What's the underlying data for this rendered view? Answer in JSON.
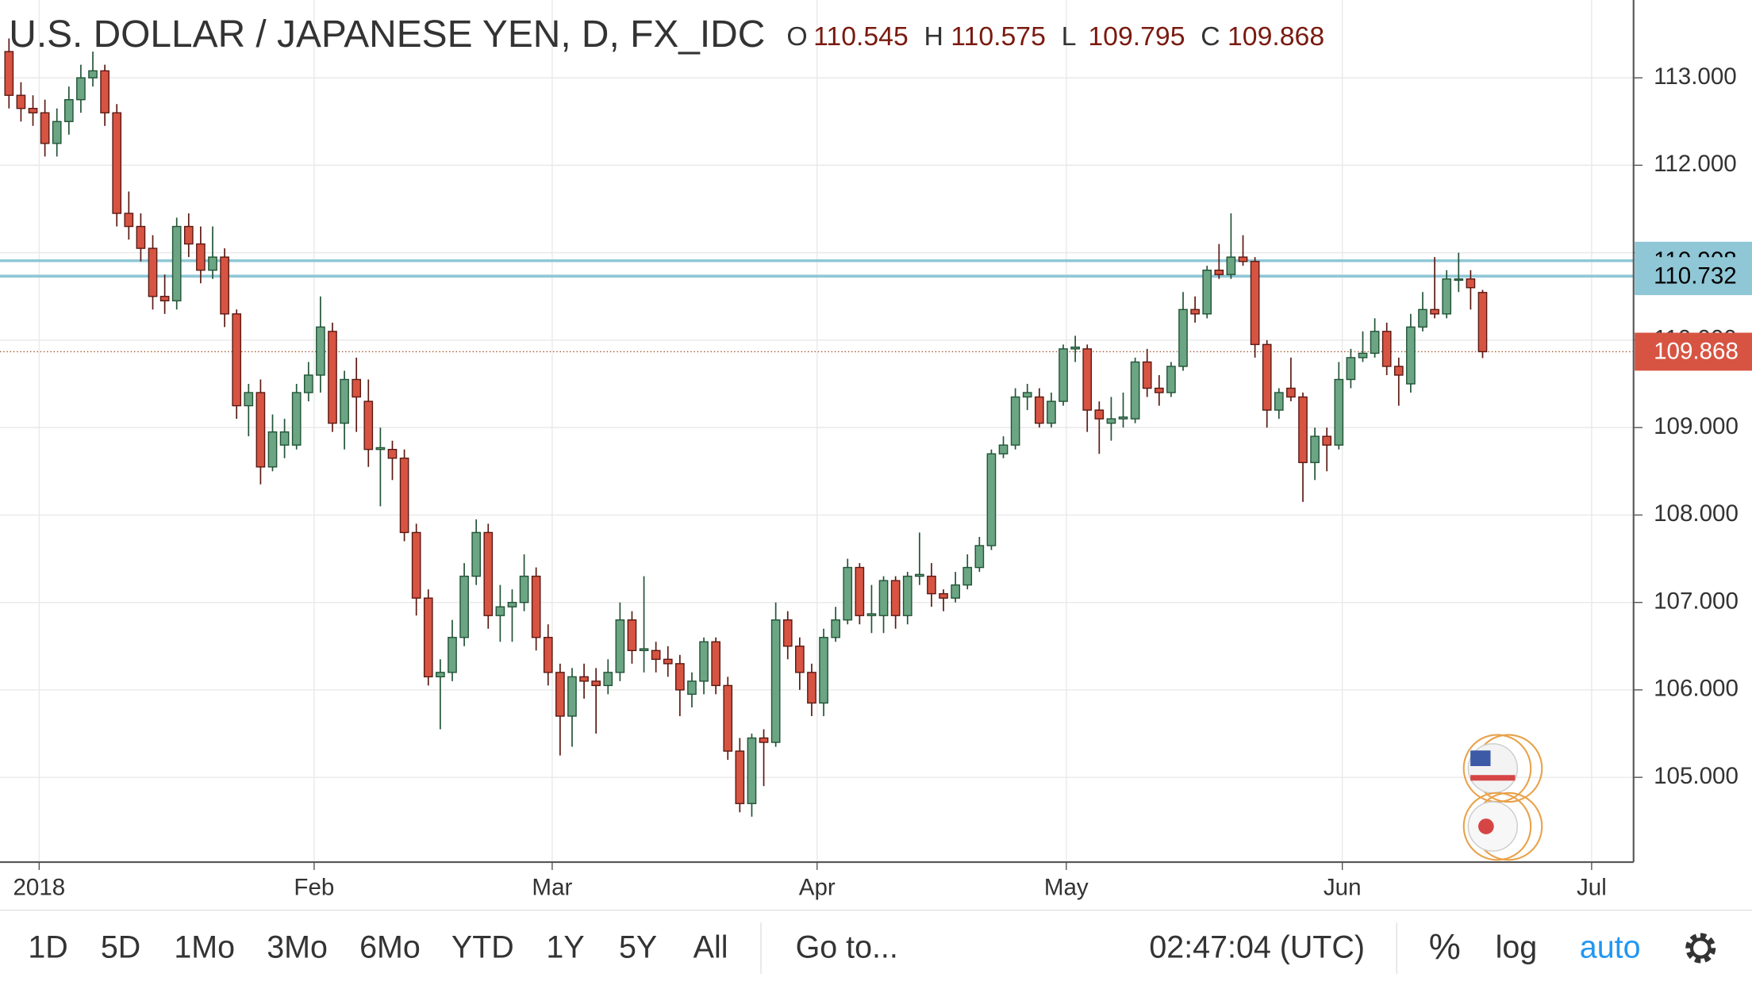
{
  "chart_data": {
    "type": "candlestick",
    "title": "U.S. DOLLAR / JAPANESE YEN, D, FX_IDC",
    "ohlc_labels": [
      "O",
      "H",
      "L",
      "C"
    ],
    "open": [
      113.3,
      112.8,
      112.65,
      112.6,
      112.25,
      112.5,
      112.75,
      113.0,
      113.08,
      112.6,
      111.45,
      111.3,
      111.05,
      110.5,
      110.45,
      111.3,
      111.1,
      110.8,
      110.95,
      110.3,
      109.25,
      109.4,
      108.55,
      108.8,
      108.8,
      109.4,
      109.6,
      110.1,
      109.05,
      109.55,
      109.3,
      108.75,
      108.75,
      108.65,
      107.8,
      107.05,
      106.15,
      106.2,
      106.6,
      107.3,
      107.8,
      106.85,
      106.95,
      107.0,
      107.3,
      106.6,
      106.2,
      105.7,
      106.15,
      106.1,
      106.05,
      106.2,
      106.8,
      106.45,
      106.45,
      106.35,
      106.3,
      105.95,
      106.1,
      106.55,
      106.05,
      105.3,
      104.7,
      105.45,
      105.4,
      106.8,
      106.5,
      106.2,
      105.85,
      106.6,
      106.8,
      107.4,
      106.85,
      106.85,
      107.25,
      106.85,
      107.3,
      107.3,
      107.1,
      107.05,
      107.2,
      107.4,
      107.65,
      108.7,
      108.8,
      109.35,
      109.35,
      109.05,
      109.3,
      109.9,
      109.9,
      109.2,
      109.05,
      109.1,
      109.1,
      109.75,
      109.45,
      109.4,
      109.7,
      110.35,
      110.3,
      110.8,
      110.75,
      110.95,
      110.9,
      109.95,
      109.2,
      109.45,
      109.35,
      108.6,
      108.9,
      108.8,
      109.55,
      109.8,
      109.85,
      110.1,
      109.7,
      109.5,
      110.15,
      110.35,
      110.3,
      110.7,
      110.7,
      110.545
    ],
    "high": [
      113.45,
      112.95,
      112.8,
      112.75,
      112.65,
      112.9,
      113.15,
      113.3,
      113.15,
      112.7,
      111.7,
      111.45,
      111.2,
      110.75,
      111.4,
      111.45,
      111.3,
      111.3,
      111.05,
      110.35,
      109.5,
      109.55,
      109.15,
      109.1,
      109.5,
      109.75,
      110.5,
      110.2,
      109.65,
      109.8,
      109.55,
      109.0,
      108.85,
      108.75,
      107.9,
      107.15,
      106.35,
      106.8,
      107.45,
      107.95,
      107.9,
      107.2,
      107.15,
      107.55,
      107.4,
      106.75,
      106.3,
      106.25,
      106.3,
      106.25,
      106.35,
      107.0,
      106.9,
      107.3,
      106.55,
      106.5,
      106.4,
      106.2,
      106.6,
      106.6,
      106.15,
      105.45,
      105.5,
      105.55,
      107.0,
      106.9,
      106.6,
      106.3,
      106.7,
      106.95,
      107.5,
      107.45,
      107.2,
      107.3,
      107.3,
      107.35,
      107.8,
      107.45,
      107.15,
      107.35,
      107.55,
      107.75,
      108.75,
      108.9,
      109.45,
      109.5,
      109.45,
      109.4,
      109.95,
      110.05,
      109.95,
      109.3,
      109.35,
      109.4,
      109.8,
      109.9,
      109.6,
      109.75,
      110.55,
      110.5,
      110.85,
      111.1,
      111.45,
      111.2,
      110.95,
      110.0,
      109.45,
      109.8,
      109.4,
      109.0,
      109.0,
      109.75,
      109.9,
      110.1,
      110.25,
      110.2,
      109.8,
      110.3,
      110.55,
      110.95,
      110.8,
      111.0,
      110.8,
      110.575
    ],
    "low": [
      112.65,
      112.5,
      112.45,
      112.1,
      112.1,
      112.35,
      112.6,
      112.9,
      112.45,
      111.3,
      111.15,
      110.9,
      110.35,
      110.3,
      110.35,
      110.95,
      110.65,
      110.7,
      110.15,
      109.1,
      108.9,
      108.35,
      108.5,
      108.65,
      108.75,
      109.3,
      109.4,
      108.95,
      108.75,
      108.95,
      108.55,
      108.1,
      108.4,
      107.7,
      106.85,
      106.05,
      105.55,
      106.1,
      106.5,
      107.2,
      106.7,
      106.55,
      106.55,
      106.9,
      106.45,
      106.05,
      105.25,
      105.35,
      105.9,
      105.5,
      105.95,
      106.1,
      106.3,
      106.2,
      106.2,
      106.15,
      105.7,
      105.8,
      105.95,
      105.95,
      105.2,
      104.6,
      104.55,
      104.9,
      105.35,
      106.35,
      106.0,
      105.7,
      105.7,
      106.55,
      106.75,
      106.75,
      106.65,
      106.65,
      106.7,
      106.75,
      107.2,
      106.95,
      106.9,
      107.0,
      107.15,
      107.35,
      107.6,
      108.65,
      108.75,
      109.2,
      109.0,
      109.0,
      109.25,
      109.75,
      108.95,
      108.7,
      108.85,
      109.0,
      109.05,
      109.35,
      109.25,
      109.35,
      109.65,
      110.2,
      110.25,
      110.7,
      110.7,
      110.85,
      109.8,
      109.0,
      109.1,
      109.3,
      108.15,
      108.4,
      108.5,
      108.75,
      109.45,
      109.75,
      109.8,
      109.6,
      109.25,
      109.4,
      110.1,
      110.25,
      110.25,
      110.55,
      110.35,
      109.795
    ],
    "close": [
      112.8,
      112.65,
      112.6,
      112.25,
      112.5,
      112.75,
      113.0,
      113.08,
      112.6,
      111.45,
      111.3,
      111.05,
      110.5,
      110.45,
      111.3,
      111.1,
      110.8,
      110.95,
      110.3,
      109.25,
      109.4,
      108.55,
      108.95,
      108.95,
      109.4,
      109.6,
      110.15,
      109.05,
      109.55,
      109.35,
      108.75,
      108.77,
      108.65,
      107.8,
      107.05,
      106.15,
      106.2,
      106.6,
      107.3,
      107.8,
      106.85,
      106.95,
      107.0,
      107.3,
      106.6,
      106.2,
      105.7,
      106.15,
      106.1,
      106.05,
      106.2,
      106.8,
      106.45,
      106.47,
      106.35,
      106.3,
      106.0,
      106.1,
      106.55,
      106.05,
      105.3,
      104.7,
      105.45,
      105.4,
      106.8,
      106.5,
      106.2,
      105.85,
      106.6,
      106.8,
      107.4,
      106.85,
      106.87,
      107.25,
      106.85,
      107.3,
      107.32,
      107.1,
      107.05,
      107.2,
      107.4,
      107.65,
      108.7,
      108.8,
      109.35,
      109.4,
      109.05,
      109.3,
      109.9,
      109.92,
      109.2,
      109.1,
      109.1,
      109.12,
      109.75,
      109.45,
      109.4,
      109.7,
      110.35,
      110.3,
      110.8,
      110.75,
      110.95,
      110.9,
      109.95,
      109.2,
      109.4,
      109.35,
      108.6,
      108.9,
      108.8,
      109.55,
      109.8,
      109.85,
      110.1,
      109.7,
      109.6,
      110.15,
      110.35,
      110.3,
      110.7,
      110.7,
      110.6,
      109.868
    ],
    "up_color": "#6ba583",
    "up_border": "#225437",
    "down_color": "#d75442",
    "down_border": "#5b1a13",
    "xlim": [
      -0.75,
      135.6
    ],
    "xticks": [
      {
        "value": 2.52,
        "label": "2018"
      },
      {
        "value": 25.47,
        "label": "Feb"
      },
      {
        "value": 45.34,
        "label": "Mar"
      },
      {
        "value": 67.45,
        "label": "Apr"
      },
      {
        "value": 88.25,
        "label": "May"
      },
      {
        "value": 111.29,
        "label": "Jun"
      },
      {
        "value": 132.1,
        "label": "Jul"
      }
    ],
    "ylim": [
      104.03,
      113.89
    ],
    "yticks": [
      {
        "value": 105,
        "label": "105.000"
      },
      {
        "value": 106,
        "label": "106.000"
      },
      {
        "value": 107,
        "label": "107.000"
      },
      {
        "value": 108,
        "label": "108.000"
      },
      {
        "value": 109,
        "label": "109.000"
      },
      {
        "value": 110,
        "label": "110.000"
      },
      {
        "value": 111,
        "label": "111.000"
      },
      {
        "value": 112,
        "label": "112.000"
      },
      {
        "value": 113,
        "label": "113.000"
      }
    ],
    "grid": true,
    "levels": [
      {
        "value": 110.908,
        "color": "#8fc7d6"
      },
      {
        "value": 110.732,
        "color": "#8fc7d6"
      }
    ],
    "toolbar": {
      "ranges": [
        "1D",
        "5D",
        "1Mo",
        "3Mo",
        "6Mo",
        "YTD",
        "1Y",
        "5Y",
        "All"
      ],
      "goto": "Go to...",
      "clock": "02:47:04 (UTC)",
      "percent": "%",
      "log": "log",
      "auto": "auto"
    }
  }
}
